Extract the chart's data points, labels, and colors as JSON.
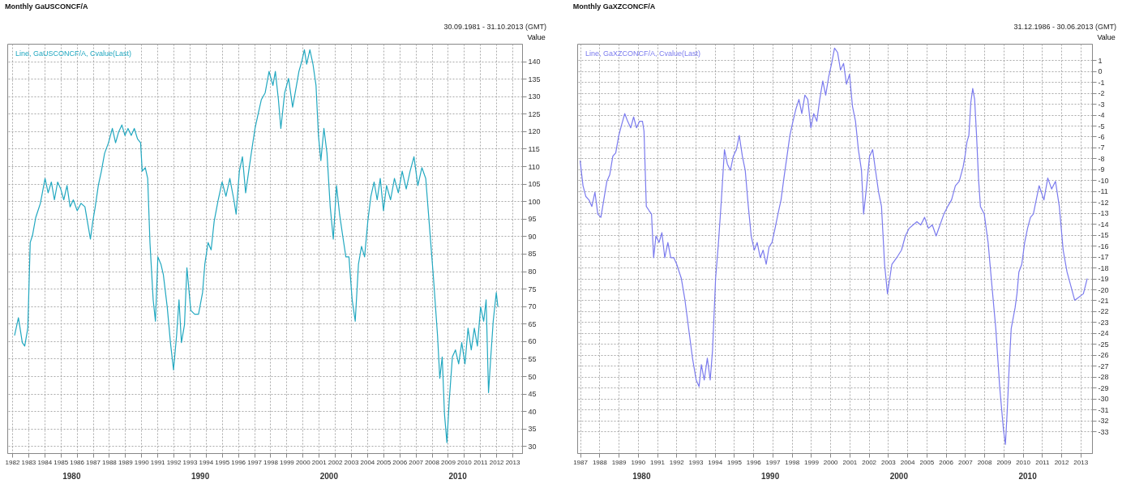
{
  "chart_data": [
    {
      "type": "line",
      "title": "Monthly GaUSCONCF/A",
      "subtitle": "30.09.1981 - 31.10.2013 (GMT)",
      "ylabel": "Value",
      "grid": true,
      "legend": "top left",
      "xlim": [
        1981.7,
        2013.6
      ],
      "xticks": [
        1982,
        1983,
        1984,
        1985,
        1986,
        1987,
        1988,
        1989,
        1990,
        1991,
        1992,
        1993,
        1994,
        1995,
        1996,
        1997,
        1998,
        1999,
        2000,
        2001,
        2002,
        2003,
        2004,
        2005,
        2006,
        2007,
        2008,
        2009,
        2010,
        2011,
        2012,
        2013
      ],
      "ylim": [
        28,
        145
      ],
      "yticks": [
        30,
        35,
        40,
        45,
        50,
        55,
        60,
        65,
        70,
        75,
        80,
        85,
        90,
        95,
        100,
        105,
        110,
        115,
        120,
        125,
        130,
        135,
        140
      ],
      "annotations": [
        "1980",
        "1990",
        "2000",
        "2010"
      ],
      "series": [
        {
          "name": "Line, GaUSCONCF/A, Cvalue(Last)",
          "color": "#22a8c0",
          "x": [
            1982.15,
            1982.39,
            1982.63,
            1982.78,
            1982.97,
            1983.12,
            1983.26,
            1983.46,
            1983.75,
            1984.04,
            1984.23,
            1984.43,
            1984.62,
            1984.82,
            1985.01,
            1985.2,
            1985.4,
            1985.59,
            1985.79,
            1986.03,
            1986.27,
            1986.51,
            1986.66,
            1986.85,
            1987.0,
            1987.15,
            1987.34,
            1987.53,
            1987.73,
            1987.97,
            1988.21,
            1988.41,
            1988.6,
            1988.8,
            1988.99,
            1989.18,
            1989.38,
            1989.57,
            1989.77,
            1989.96,
            1990.06,
            1990.25,
            1990.4,
            1990.54,
            1990.74,
            1990.88,
            1991.03,
            1991.22,
            1991.37,
            1991.61,
            1991.81,
            1992.0,
            1992.19,
            1992.34,
            1992.49,
            1992.68,
            1992.83,
            1993.07,
            1993.31,
            1993.55,
            1993.8,
            1993.94,
            1994.14,
            1994.33,
            1994.52,
            1994.77,
            1995.01,
            1995.25,
            1995.49,
            1995.74,
            1995.88,
            1996.08,
            1996.27,
            1996.47,
            1996.66,
            1996.85,
            1997.05,
            1997.24,
            1997.44,
            1997.68,
            1997.92,
            1998.16,
            1998.31,
            1998.5,
            1998.65,
            1998.89,
            1999.13,
            1999.38,
            1999.62,
            1999.77,
            1999.96,
            2000.11,
            2000.25,
            2000.45,
            2000.64,
            2000.83,
            2000.98,
            2001.13,
            2001.32,
            2001.51,
            2001.71,
            2001.9,
            2002.1,
            2002.29,
            2002.48,
            2002.68,
            2002.87,
            2003.07,
            2003.26,
            2003.46,
            2003.65,
            2003.84,
            2004.04,
            2004.23,
            2004.43,
            2004.62,
            2004.81,
            2005.01,
            2005.2,
            2005.45,
            2005.69,
            2005.93,
            2006.17,
            2006.42,
            2006.66,
            2006.9,
            2007.14,
            2007.39,
            2007.63,
            2007.87,
            2008.11,
            2008.36,
            2008.5,
            2008.65,
            2008.79,
            2008.94,
            2009.09,
            2009.28,
            2009.47,
            2009.67,
            2009.86,
            2010.06,
            2010.25,
            2010.45,
            2010.64,
            2010.83,
            2011.03,
            2011.22,
            2011.37,
            2011.52,
            2011.66,
            2011.81,
            2012.0,
            2012.1
          ],
          "values": [
            61.6,
            66.7,
            59.6,
            58.6,
            63.7,
            88.2,
            90.2,
            95.3,
            99.4,
            106.5,
            102.4,
            105.5,
            100.4,
            105.5,
            103.5,
            100.4,
            104.5,
            98.4,
            100.4,
            97.3,
            99.4,
            98.4,
            94.3,
            89.2,
            94.3,
            98.4,
            104.5,
            108.6,
            113.7,
            116.7,
            120.8,
            116.7,
            119.8,
            121.8,
            118.8,
            120.8,
            118.8,
            120.8,
            117.8,
            116.7,
            108.6,
            109.6,
            106.5,
            88.2,
            71.8,
            65.7,
            84.1,
            82.0,
            79.0,
            69.8,
            59.6,
            51.8,
            61.6,
            71.8,
            59.6,
            64.7,
            81.0,
            68.8,
            67.7,
            67.7,
            73.9,
            82.0,
            88.2,
            86.1,
            94.3,
            100.4,
            105.5,
            101.4,
            106.5,
            100.4,
            96.3,
            108.6,
            112.7,
            102.4,
            108.6,
            114.7,
            120.8,
            124.9,
            129.0,
            131.0,
            137.1,
            133.1,
            137.1,
            129.0,
            120.8,
            131.0,
            135.1,
            126.9,
            133.1,
            137.1,
            140.2,
            143.3,
            139.2,
            143.3,
            139.2,
            133.1,
            118.8,
            111.6,
            120.8,
            113.7,
            98.4,
            89.2,
            104.5,
            96.3,
            90.2,
            84.1,
            84.1,
            71.8,
            65.7,
            82.0,
            87.1,
            84.1,
            94.3,
            101.4,
            105.5,
            100.4,
            106.5,
            97.3,
            104.5,
            100.4,
            106.5,
            102.4,
            108.6,
            103.5,
            108.6,
            112.7,
            104.5,
            109.6,
            106.5,
            92.2,
            78.0,
            61.6,
            49.4,
            55.5,
            39.2,
            31.0,
            43.3,
            55.5,
            57.5,
            53.5,
            59.6,
            53.5,
            63.7,
            57.5,
            63.7,
            58.6,
            69.8,
            65.7,
            71.8,
            45.3,
            55.5,
            65.7,
            73.9,
            69.8
          ]
        }
      ]
    },
    {
      "type": "line",
      "title": "Monthly GaXZCONCF/A",
      "subtitle": "31.12.1986 - 30.06.2013 (GMT)",
      "ylabel": "Value",
      "grid": true,
      "legend": "top left",
      "xlim": [
        1986.85,
        2013.6
      ],
      "xticks": [
        1987,
        1988,
        1989,
        1990,
        1991,
        1992,
        1993,
        1994,
        1995,
        1996,
        1997,
        1998,
        1999,
        2000,
        2001,
        2002,
        2003,
        2004,
        2005,
        2006,
        2007,
        2008,
        2009,
        2010,
        2011,
        2012,
        2013
      ],
      "ylim": [
        -35,
        2.5
      ],
      "yticks": [
        1,
        0,
        -1,
        -2,
        -3,
        -4,
        -5,
        -6,
        -7,
        -8,
        -9,
        -10,
        -11,
        -12,
        -13,
        -14,
        -15,
        -16,
        -17,
        -18,
        -19,
        -20,
        -21,
        -22,
        -23,
        -24,
        -25,
        -26,
        -27,
        -28,
        -29,
        -30,
        -31,
        -32,
        -33
      ],
      "annotations": [
        "1980",
        "1990",
        "2000",
        "2010"
      ],
      "series": [
        {
          "name": "Line, GaXZCONCF/A, Cvalue(Last)",
          "color": "#7b7bee",
          "x": [
            1987.0,
            1987.15,
            1987.3,
            1987.46,
            1987.61,
            1987.77,
            1987.92,
            1988.08,
            1988.23,
            1988.39,
            1988.54,
            1988.7,
            1988.85,
            1989.01,
            1989.16,
            1989.32,
            1989.47,
            1989.63,
            1989.78,
            1989.93,
            1990.09,
            1990.24,
            1990.32,
            1990.44,
            1990.59,
            1990.71,
            1990.82,
            1990.94,
            1991.1,
            1991.25,
            1991.4,
            1991.56,
            1991.71,
            1991.87,
            1992.02,
            1992.26,
            1992.45,
            1992.64,
            1992.84,
            1993.03,
            1993.18,
            1993.3,
            1993.45,
            1993.61,
            1993.76,
            1993.88,
            1994.04,
            1994.19,
            1994.34,
            1994.5,
            1994.65,
            1994.81,
            1994.96,
            1995.12,
            1995.27,
            1995.43,
            1995.58,
            1995.74,
            1995.89,
            1996.05,
            1996.2,
            1996.36,
            1996.51,
            1996.67,
            1996.82,
            1996.97,
            1997.13,
            1997.28,
            1997.44,
            1997.59,
            1997.75,
            1997.9,
            1998.06,
            1998.21,
            1998.37,
            1998.52,
            1998.68,
            1998.83,
            1998.99,
            1999.14,
            1999.3,
            1999.45,
            1999.61,
            1999.76,
            1999.91,
            2000.07,
            2000.22,
            2000.38,
            2000.53,
            2000.69,
            2000.84,
            2001.0,
            2001.15,
            2001.31,
            2001.46,
            2001.62,
            2001.73,
            2001.89,
            2002.04,
            2002.2,
            2002.35,
            2002.51,
            2002.66,
            2002.82,
            2002.97,
            2003.2,
            2003.45,
            2003.7,
            2003.9,
            2004.1,
            2004.3,
            2004.5,
            2004.7,
            2004.9,
            2005.1,
            2005.3,
            2005.5,
            2005.7,
            2005.9,
            2006.1,
            2006.3,
            2006.5,
            2006.7,
            2006.9,
            2007.0,
            2007.1,
            2007.2,
            2007.3,
            2007.4,
            2007.5,
            2007.6,
            2007.7,
            2007.8,
            2008.0,
            2008.2,
            2008.4,
            2008.6,
            2008.8,
            2009.0,
            2009.1,
            2009.2,
            2009.3,
            2009.4,
            2009.6,
            2009.7,
            2009.8,
            2009.95,
            2010.1,
            2010.25,
            2010.4,
            2010.55,
            2010.7,
            2010.85,
            2011.1,
            2011.3,
            2011.5,
            2011.7,
            2011.9,
            2012.1,
            2012.3,
            2012.5,
            2012.7,
            2013.15,
            2013.35
          ],
          "values": [
            -8.2,
            -10.5,
            -11.5,
            -11.8,
            -12.4,
            -11.1,
            -13.1,
            -13.4,
            -11.8,
            -10.1,
            -9.5,
            -7.8,
            -7.5,
            -5.9,
            -4.9,
            -3.9,
            -4.6,
            -5.2,
            -4.2,
            -5.2,
            -4.6,
            -4.6,
            -5.5,
            -12.4,
            -12.8,
            -13.1,
            -17.1,
            -15.1,
            -15.7,
            -14.8,
            -17.1,
            -15.7,
            -17.1,
            -17.1,
            -17.7,
            -19.0,
            -21.0,
            -23.6,
            -26.3,
            -28.3,
            -28.9,
            -26.9,
            -28.3,
            -26.3,
            -28.3,
            -25.6,
            -19.0,
            -15.7,
            -11.8,
            -7.2,
            -8.5,
            -9.1,
            -7.8,
            -7.2,
            -5.9,
            -7.8,
            -9.1,
            -12.4,
            -15.1,
            -16.4,
            -15.7,
            -17.1,
            -16.4,
            -17.7,
            -16.1,
            -15.7,
            -14.4,
            -13.1,
            -11.8,
            -9.8,
            -7.8,
            -5.9,
            -4.6,
            -3.5,
            -2.6,
            -3.9,
            -2.2,
            -2.6,
            -5.2,
            -3.9,
            -4.6,
            -2.6,
            -0.9,
            -2.2,
            -0.6,
            0.7,
            2.1,
            1.7,
            0.1,
            0.7,
            -1.2,
            -0.3,
            -3.2,
            -4.6,
            -7.2,
            -9.1,
            -13.1,
            -10.5,
            -7.8,
            -7.2,
            -9.1,
            -11.1,
            -12.4,
            -17.7,
            -20.4,
            -17.7,
            -17.1,
            -16.4,
            -15.1,
            -14.4,
            -14.1,
            -13.8,
            -14.1,
            -13.4,
            -14.4,
            -14.1,
            -15.1,
            -14.1,
            -13.1,
            -12.4,
            -11.8,
            -10.5,
            -10.1,
            -8.8,
            -7.8,
            -6.5,
            -5.9,
            -2.9,
            -1.6,
            -2.6,
            -5.9,
            -9.8,
            -12.4,
            -13.1,
            -15.7,
            -19.7,
            -23.6,
            -28.9,
            -32.9,
            -34.2,
            -30.9,
            -26.9,
            -23.6,
            -21.7,
            -20.4,
            -18.4,
            -17.7,
            -15.7,
            -14.4,
            -13.4,
            -13.1,
            -11.8,
            -10.5,
            -11.8,
            -9.8,
            -10.8,
            -10.1,
            -12.4,
            -16.4,
            -18.4,
            -19.7,
            -21.0,
            -20.4,
            -19.0
          ]
        }
      ]
    }
  ]
}
